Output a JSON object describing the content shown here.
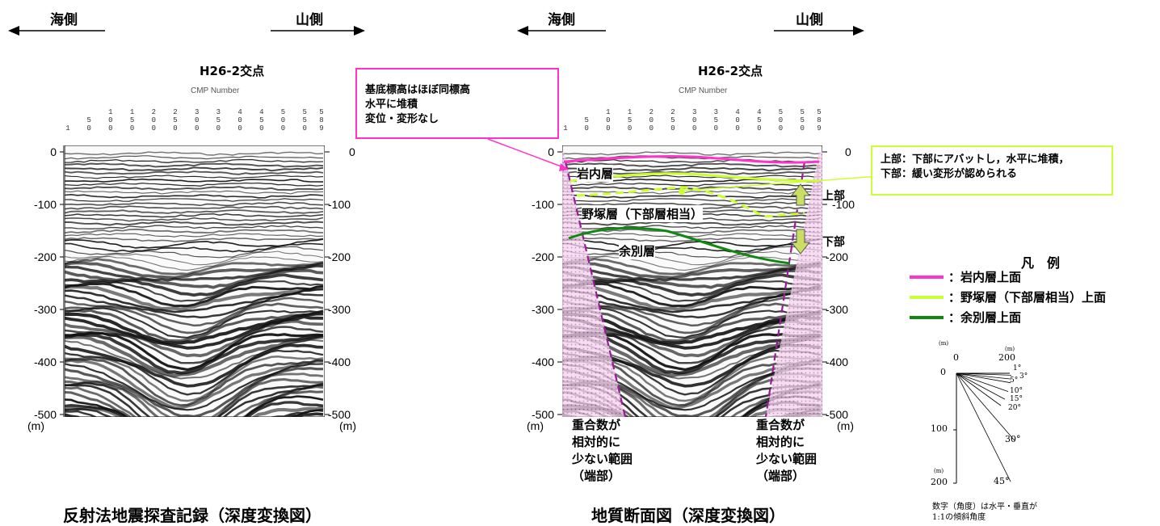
{
  "directions": {
    "sea_left": "海側",
    "mountain_left": "山側",
    "sea_right": "海側",
    "mountain_right": "山側"
  },
  "crossing_label": "H26-2交点",
  "cmp_axis_label": "CMP Number",
  "cmp_ticks": [
    "1",
    "50",
    "100",
    "150",
    "200",
    "250",
    "300",
    "350",
    "400",
    "450",
    "500",
    "550",
    "589"
  ],
  "depth_axis": {
    "ticks": [
      "0",
      "-100",
      "-200",
      "-300",
      "-400",
      "-500"
    ],
    "unit": "(m)"
  },
  "left_panel": {
    "title": "反射法地震探査記録（深度変換図）"
  },
  "right_panel": {
    "title": "地質断面図（深度変換図）",
    "annotation_box": [
      "基底標高はほぼ同標高",
      "水平に堆積",
      "変位・変形なし"
    ],
    "layer_labels": {
      "iwanai": "岩内層",
      "nozuka": "野塚層（下部層相当）",
      "yobetsu": "余別層"
    },
    "arrow_labels": {
      "upper": "上部",
      "lower": "下部"
    },
    "callout": [
      "上部：下部にアバットし，水平に堆積，",
      "下部：緩い変形が認められる"
    ],
    "end_label_lines": [
      "重合数が",
      "相対的に",
      "少ない範囲",
      "（端部）"
    ]
  },
  "legend": {
    "title": "凡　例",
    "items": [
      {
        "label": "：岩内層上面",
        "color": "#ff33cc"
      },
      {
        "label": "：野塚層（下部層相当）上面",
        "color": "#ccff33"
      },
      {
        "label": "：余別層上面",
        "color": "#118811"
      }
    ]
  },
  "dip_scale": {
    "axis_unit": "(m)",
    "h_ticks": [
      "0",
      "200"
    ],
    "v_ticks": [
      "0",
      "100",
      "200"
    ],
    "angles": [
      "1°",
      "3°",
      "5°",
      "10°",
      "15°",
      "20°",
      "30°",
      "45°"
    ],
    "note_lines": [
      "数字（角度）は水平・垂直が",
      "1:1の傾斜角度"
    ]
  },
  "colors": {
    "iwanai": "#ff33cc",
    "nozuka": "#ccff33",
    "yobetsu": "#118811",
    "end_zone": "#e9b8e0",
    "end_dash": "#9a1a9a",
    "arrow_fill": "#ccdd66"
  }
}
